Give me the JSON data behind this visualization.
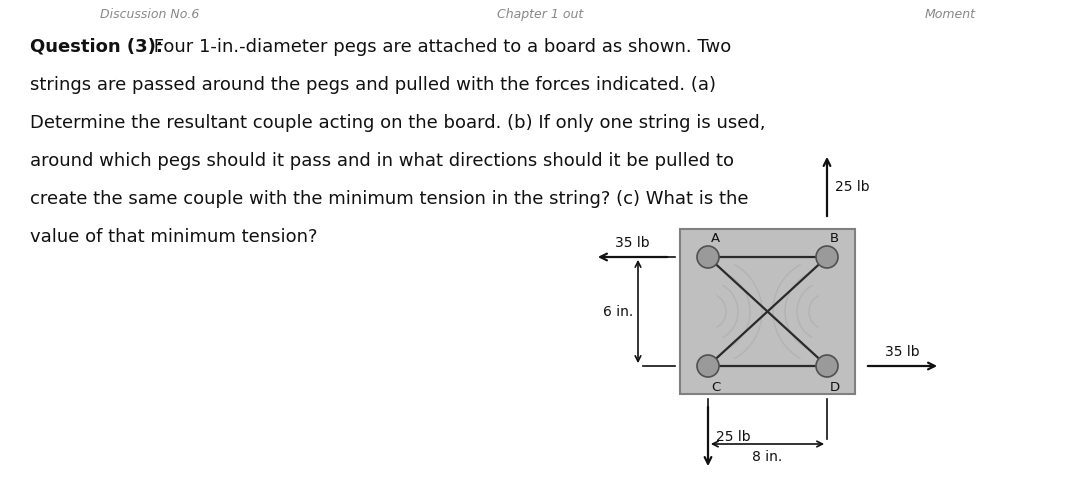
{
  "background_color": "#ffffff",
  "board_fill": "#c0bfbf",
  "board_edge": "#808080",
  "peg_fill": "#9a9a9a",
  "peg_edge": "#505050",
  "string_color": "#2a2a2a",
  "arrow_color": "#111111",
  "dim_color": "#111111",
  "text_color": "#111111",
  "header_color": "#888888",
  "font_size_q": 13.0,
  "font_size_label": 9.5,
  "font_size_force": 10.0,
  "font_size_dim": 10.0,
  "font_size_header": 9.0,
  "bold_text": "Question (3):",
  "line1": " Four 1-in.-diameter pegs are attached to a board as shown. Two",
  "line2": "strings are passed around the pegs and pulled with the forces indicated. (a)",
  "line3": "Determine the resultant couple acting on the board. (b) If only one string is used,",
  "line4": "around which pegs should it pass and in what directions should it be pulled to",
  "line5": "create the same couple with the minimum tension in the string? (c) What is the",
  "line6": "value of that minimum tension?",
  "header_left": "Discussion No.6",
  "header_mid": "Chapter 1 out",
  "header_right": "Moment",
  "force_35_left": "35 lb",
  "force_35_right": "35 lb",
  "force_25_up": "25 lb",
  "force_25_down": "25 lb",
  "dim_6": "6 in.",
  "dim_8": "8 in.",
  "label_A": "A",
  "label_B": "B",
  "label_C": "C",
  "label_D": "D"
}
